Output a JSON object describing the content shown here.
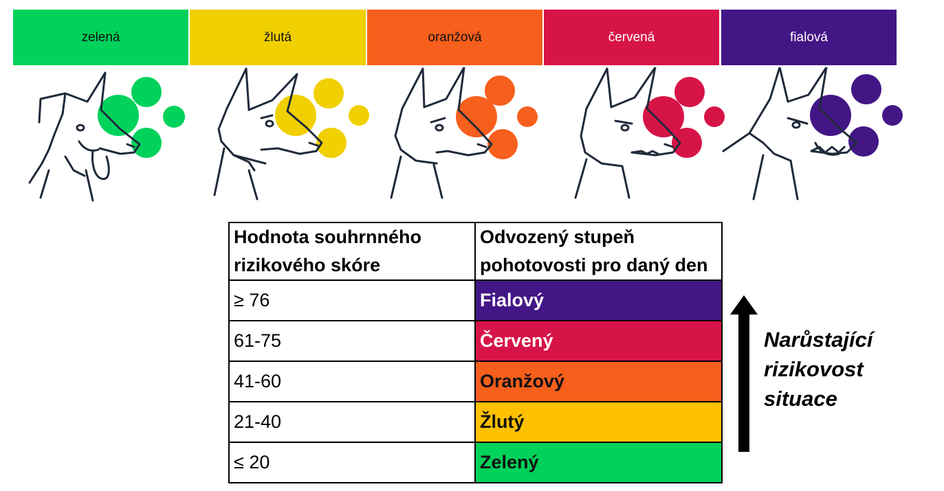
{
  "levels": [
    {
      "label": "zelená",
      "color": "#00d25b"
    },
    {
      "label": "žlutá",
      "color": "#f0d000"
    },
    {
      "label": "oranžová",
      "color": "#f75f1c"
    },
    {
      "label": "červená",
      "color": "#d71447"
    },
    {
      "label": "fialová",
      "color": "#431686"
    }
  ],
  "table": {
    "header": {
      "col1": "Hodnota souhrnného rizikového skóre",
      "col2": "Odvozený stupeň pohotovosti pro daný den"
    },
    "rows": [
      {
        "score": "≥ 76",
        "level": "Fialový",
        "color": "#431686",
        "text_color": "#ffffff"
      },
      {
        "score": "61-75",
        "level": "Červený",
        "color": "#d71447",
        "text_color": "#ffffff"
      },
      {
        "score": "41-60",
        "level": "Oranžový",
        "color": "#f75f1c",
        "text_color": "#111111"
      },
      {
        "score": "21-40",
        "level": "Žlutý",
        "color": "#ffc000",
        "text_color": "#111111"
      },
      {
        "score": "≤ 20",
        "level": "Zelený",
        "color": "#00d25b",
        "text_color": "#111111"
      }
    ]
  },
  "risk_note": "Narůstající rizikovost situace",
  "icons": [
    "dog-head-icon",
    "up-arrow-icon"
  ]
}
